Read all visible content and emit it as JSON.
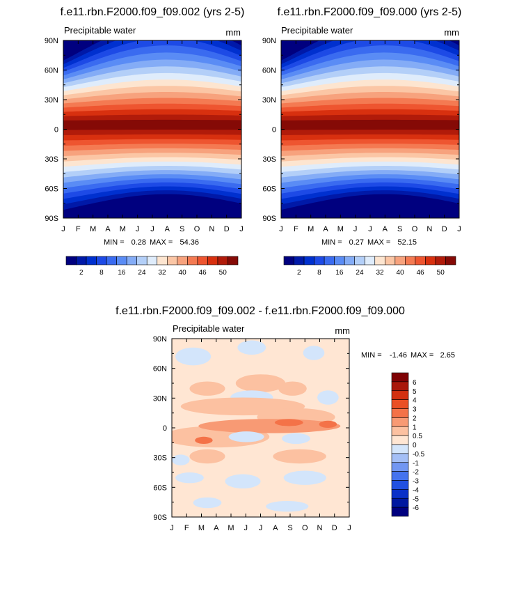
{
  "chart_data": [
    {
      "type": "heatmap",
      "id": "panel1",
      "title": "f.e11.rbn.F2000.f09_f09.002 (yrs 2-5)",
      "variable": "Precipitable water",
      "units": "mm",
      "x_ticks": [
        "J",
        "F",
        "M",
        "A",
        "M",
        "J",
        "J",
        "A",
        "S",
        "O",
        "N",
        "D",
        "J"
      ],
      "y_ticks": [
        "90N",
        "60N",
        "30N",
        "0",
        "30S",
        "60S",
        "90S"
      ],
      "y_values": [
        90,
        60,
        30,
        0,
        -30,
        -60,
        -90
      ],
      "min_label": "MIN =",
      "min_value": "0.28",
      "max_label": "MAX =",
      "max_value": "54.36",
      "colorbar_labels": [
        "2",
        "8",
        "16",
        "24",
        "32",
        "40",
        "46",
        "50"
      ]
    },
    {
      "type": "heatmap",
      "id": "panel2",
      "title": "f.e11.rbn.F2000.f09_f09.000 (yrs 2-5)",
      "variable": "Precipitable water",
      "units": "mm",
      "x_ticks": [
        "J",
        "F",
        "M",
        "A",
        "M",
        "J",
        "J",
        "A",
        "S",
        "O",
        "N",
        "D",
        "J"
      ],
      "y_ticks": [
        "90N",
        "60N",
        "30N",
        "0",
        "30S",
        "60S",
        "90S"
      ],
      "y_values": [
        90,
        60,
        30,
        0,
        -30,
        -60,
        -90
      ],
      "min_label": "MIN =",
      "min_value": "0.27",
      "max_label": "MAX =",
      "max_value": "52.15",
      "colorbar_labels": [
        "2",
        "8",
        "16",
        "24",
        "32",
        "40",
        "46",
        "50"
      ]
    },
    {
      "type": "heatmap",
      "id": "diff",
      "title": "f.e11.rbn.F2000.f09_f09.002 - f.e11.rbn.F2000.f09_f09.000",
      "variable": "Precipitable water",
      "units": "mm",
      "x_ticks": [
        "J",
        "F",
        "M",
        "A",
        "M",
        "J",
        "J",
        "A",
        "S",
        "O",
        "N",
        "D",
        "J"
      ],
      "y_ticks": [
        "90N",
        "60N",
        "30N",
        "0",
        "30S",
        "60S",
        "90S"
      ],
      "y_values": [
        90,
        60,
        30,
        0,
        -30,
        -60,
        -90
      ],
      "min_label": "MIN =",
      "min_value": "-1.46",
      "max_label": "MAX =",
      "max_value": "2.65",
      "colorbar_labels": [
        "6",
        "5",
        "4",
        "3",
        "2",
        "1",
        "0.5",
        "0",
        "-0.5",
        "-1",
        "-2",
        "-3",
        "-4",
        "-5",
        "-6"
      ]
    }
  ],
  "colors": {
    "seq": [
      "#00007f",
      "#0019a8",
      "#0030cf",
      "#1d4ae6",
      "#3a6bf0",
      "#5a8cf5",
      "#84acf6",
      "#b3cff8",
      "#dfecfb",
      "#fde5d0",
      "#fbc6a5",
      "#f7a27d",
      "#f47a52",
      "#ee5530",
      "#d8300f",
      "#b11b0a",
      "#850a06"
    ],
    "div": [
      "#00007f",
      "#0018a0",
      "#0a30c8",
      "#2150e0",
      "#4573ee",
      "#7297f2",
      "#a4bff6",
      "#d3e5fb",
      "#ffe6d3",
      "#fcc1a1",
      "#f89a74",
      "#f47248",
      "#ea4f24",
      "#d33010",
      "#a9170a",
      "#7f0204"
    ]
  }
}
